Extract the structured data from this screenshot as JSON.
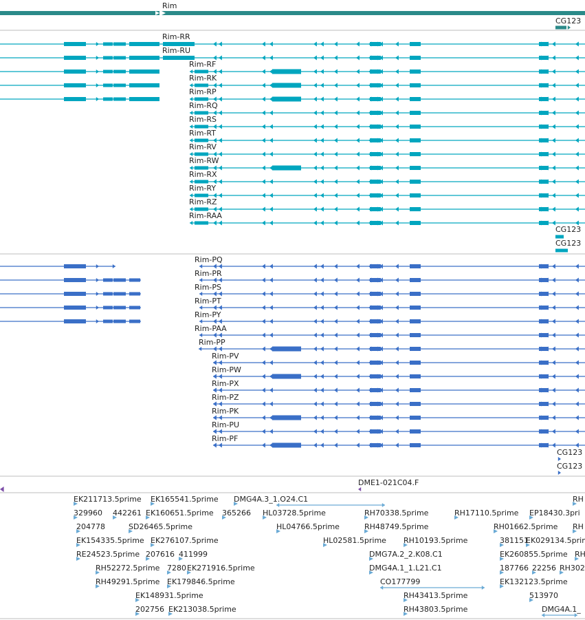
{
  "colors": {
    "gene": "#2b8a89",
    "transcript": "#00a6bf",
    "protein": "#3a6fc7",
    "primer": "#7d4fa8",
    "est": "#6aaad5",
    "separator": "#bdbdbd"
  },
  "gene_track": {
    "gene_label": "Rim",
    "neighbor_label": "CG123"
  },
  "transcript_track": {
    "left_rows": [
      "Rim-RR",
      "Rim-RU"
    ],
    "rows": [
      "Rim-RF",
      "Rim-RK",
      "Rim-RP",
      "Rim-RQ",
      "Rim-RS",
      "Rim-RT",
      "Rim-RV",
      "Rim-RW",
      "Rim-RX",
      "Rim-RY",
      "Rim-RZ",
      "Rim-RAA"
    ],
    "neighbor_labels": [
      "CG123",
      "CG123"
    ]
  },
  "protein_track": {
    "rows": [
      "Rim-PQ",
      "Rim-PR",
      "Rim-PS",
      "Rim-PT",
      "Rim-PY",
      "Rim-PAA",
      "Rim-PP",
      "Rim-PV",
      "Rim-PW",
      "Rim-PX",
      "Rim-PZ",
      "Rim-PK",
      "Rim-PU",
      "Rim-PF"
    ],
    "neighbor_labels": [
      "CG123",
      "CG123"
    ]
  },
  "primer_track": {
    "label": "DME1-021C04.F"
  },
  "est_track": {
    "labels": [
      "EK211713.5prime",
      "EK165541.5prime",
      "DMG4A.3_1.O24.C1",
      "RH",
      "329960",
      "442261",
      "EK160651.5prime",
      "365266",
      "HL03728.5prime",
      "RH70338.5prime",
      "RH17110.5prime",
      "EP18430.3pri",
      "204778",
      "SD26465.5prime",
      "HL04766.5prime",
      "RH48749.5prime",
      "RH01662.5prime",
      "RH",
      "EK154335.5prime",
      "EK276107.5prime",
      "HL02581.5prime",
      "RH10193.5prime",
      "381151",
      "EK029134.5prime",
      "RE24523.5prime",
      "207616",
      "411999",
      "DMG7A.2_2.K08.C1",
      "EK260855.5prime",
      "RH",
      "RH52272.5prime",
      "7280",
      "EK271916.5prime",
      "DMG4A.1_1.L21.C1",
      "187766",
      "22256",
      "RH302",
      "RH49291.5prime",
      "EK179846.5prime",
      "CO177799",
      "EK132123.5prime",
      "EK148931.5prime",
      "RH43413.5prime",
      "513970",
      "202756",
      "EK213038.5prime",
      "RH43803.5prime",
      "DMG4A.1_"
    ]
  }
}
